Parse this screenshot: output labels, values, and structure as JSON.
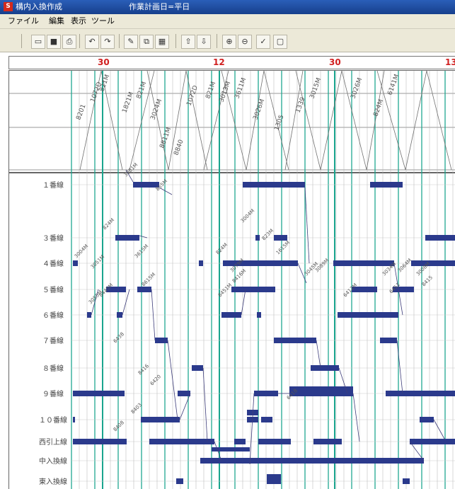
{
  "window": {
    "app_title": "構内入換作成",
    "plan_date": "作業計画日=平日",
    "app_icon": "app-icon"
  },
  "menu": [
    "ファイル",
    "編集",
    "表示",
    "ツール"
  ],
  "toolbar": [
    {
      "name": "open-file-button",
      "icon": "folder-open-icon",
      "glyph": "▭"
    },
    {
      "name": "save-button",
      "icon": "floppy-icon",
      "glyph": "■"
    },
    {
      "name": "print-button",
      "icon": "printer-icon",
      "glyph": "⎙"
    },
    {
      "name": "undo-button",
      "icon": "undo-icon",
      "glyph": "↶"
    },
    {
      "name": "redo-button",
      "icon": "redo-icon",
      "glyph": "↷"
    },
    {
      "name": "edit-button",
      "icon": "pencil-icon",
      "glyph": "✎"
    },
    {
      "name": "copy-button",
      "icon": "copy-icon",
      "glyph": "⧉"
    },
    {
      "name": "grid-button",
      "icon": "grid-icon",
      "glyph": "▦"
    },
    {
      "name": "move-up-button",
      "icon": "arrow-up-icon",
      "glyph": "⇧"
    },
    {
      "name": "move-down-button",
      "icon": "arrow-down-icon",
      "glyph": "⇩"
    },
    {
      "name": "zoom-in-button",
      "icon": "zoom-in-icon",
      "glyph": "⊕"
    },
    {
      "name": "zoom-out-button",
      "icon": "zoom-out-icon",
      "glyph": "⊖"
    },
    {
      "name": "check-button",
      "icon": "check-icon",
      "glyph": "✓"
    },
    {
      "name": "page-button",
      "icon": "page-icon",
      "glyph": "▢"
    }
  ],
  "colors": {
    "title_bar": "#1f4ea3",
    "grid_line": "#1aa58e",
    "minor_grid": "#9a9a9a",
    "occupancy_bar": "#2b3a8c",
    "ruler_text": "#d12020",
    "diagram_line": "#707070"
  },
  "time_ruler": [
    "30",
    "12",
    "30",
    "13"
  ],
  "top_diagram_labels": [
    "8201",
    "1072D",
    "821M",
    "1821M",
    "821M",
    "3024M",
    "8811M",
    "8840",
    "1072D",
    "821M",
    "3013M",
    "3611M",
    "3026M",
    "1305",
    "1339",
    "3015M",
    "3026M",
    "824M",
    "6141M"
  ],
  "tracks": [
    "１番線",
    "３番線",
    "４番線",
    "５番線",
    "６番線",
    "７番線",
    "８番線",
    "９番線",
    "１０番線",
    "西引上線",
    "中入換線",
    "東入換線"
  ],
  "move_labels": [
    "3081M",
    "855M",
    "824M",
    "3004M",
    "823M",
    "1615M",
    "3004M",
    "3051M",
    "3615M",
    "824M",
    "3079M",
    "3045M",
    "3089M",
    "3034M",
    "3064M",
    "3008M",
    "3055M",
    "8445M",
    "8615M",
    "6451M",
    "8416M",
    "6412M",
    "6451",
    "8415",
    "6438",
    "8416",
    "6420",
    "8408",
    "8403",
    "6418"
  ]
}
